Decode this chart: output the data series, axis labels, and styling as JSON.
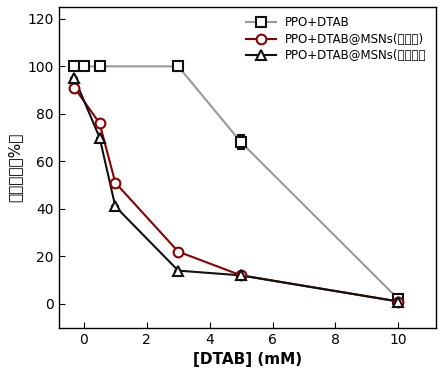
{
  "series": [
    {
      "label": "PPO+DTAB",
      "x": [
        -0.3,
        0,
        0.5,
        3,
        5,
        10
      ],
      "y": [
        100,
        100,
        100,
        100,
        68,
        2
      ],
      "yerr": [
        0,
        0,
        0,
        2,
        3,
        0
      ],
      "line_color": "#999999",
      "marker_color": "#111111",
      "marker": "s",
      "linestyle": "-",
      "linewidth": 1.5,
      "markersize": 7,
      "mfc": "white",
      "mec": "#111111"
    },
    {
      "label": "PPO+DTAB@MSNs(花状硛)",
      "x": [
        -0.3,
        0.5,
        1,
        3,
        5,
        10
      ],
      "y": [
        91,
        76,
        51,
        22,
        12,
        1
      ],
      "yerr": [
        0,
        0,
        0,
        0,
        0,
        0
      ],
      "line_color": "#8b0000",
      "marker_color": "#8b0000",
      "marker": "o",
      "linestyle": "-",
      "linewidth": 1.5,
      "markersize": 7,
      "mfc": "white",
      "mec": "#8b0000"
    },
    {
      "label": "PPO+DTAB@MSNs(球形硛）",
      "x": [
        -0.3,
        0.5,
        1,
        3,
        5,
        10
      ],
      "y": [
        95,
        70,
        41,
        14,
        12,
        1
      ],
      "yerr": [
        0,
        0,
        0,
        0,
        0,
        0
      ],
      "line_color": "#111111",
      "marker_color": "#111111",
      "marker": "^",
      "linestyle": "-",
      "linewidth": 1.5,
      "markersize": 7,
      "mfc": "white",
      "mec": "#111111"
    }
  ],
  "xlabel": "[DTAB] (mM)",
  "ylabel": "相对活性（%）",
  "xlim": [
    -0.8,
    11.2
  ],
  "ylim": [
    -10,
    125
  ],
  "xticks": [
    0,
    2,
    4,
    6,
    8,
    10
  ],
  "yticks": [
    0,
    20,
    40,
    60,
    80,
    100,
    120
  ],
  "background_color": "#ffffff",
  "legend_fontsize": 8.5,
  "axis_fontsize": 11,
  "tick_fontsize": 10
}
